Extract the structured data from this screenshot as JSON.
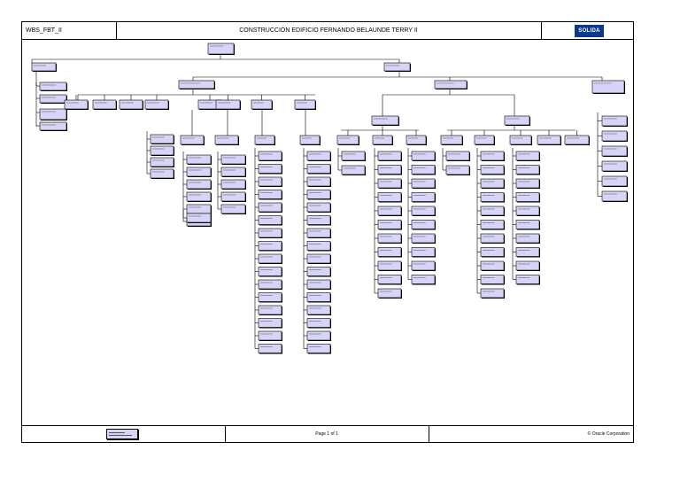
{
  "header": {
    "code": "WBS_FBT_II",
    "title": "CONSTRUCCIÓN EDIFICIO FERNANDO BELAUNDE TERRY II",
    "logo_text": "SOLIDA"
  },
  "footer": {
    "page": "Page 1 of 1",
    "copyright": "© Oracle Corporation"
  },
  "colors": {
    "node_fill": "#d7d5f7",
    "node_border": "#000000",
    "connector": "#000000",
    "logo_bg": "#0b3a8c"
  }
}
